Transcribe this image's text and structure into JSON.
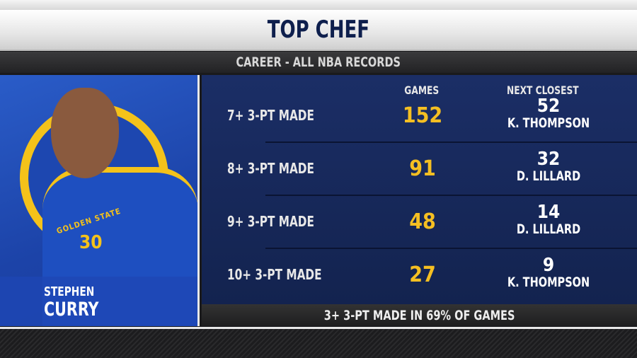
{
  "header": {
    "title": "TOP CHEF",
    "subtitle": "CAREER - ALL NBA RECORDS"
  },
  "player": {
    "first_name": "STEPHEN",
    "last_name": "CURRY",
    "jersey_number": "30",
    "jersey_text": "GOLDEN STATE",
    "colors": {
      "blue": "#1d47b0",
      "gold": "#f4c21a"
    }
  },
  "table": {
    "columns": [
      "GAMES",
      "NEXT CLOSEST"
    ],
    "rows": [
      {
        "label": "7+ 3-PT MADE",
        "games": "152",
        "next_value": "52",
        "next_player": "K. THOMPSON"
      },
      {
        "label": "8+ 3-PT MADE",
        "games": "91",
        "next_value": "32",
        "next_player": "D. LILLARD"
      },
      {
        "label": "9+ 3-PT MADE",
        "games": "48",
        "next_value": "14",
        "next_player": "D. LILLARD"
      },
      {
        "label": "10+ 3-PT MADE",
        "games": "27",
        "next_value": "9",
        "next_player": "K. THOMPSON"
      }
    ]
  },
  "footer": "3+ 3-PT MADE IN 69% OF GAMES",
  "colors": {
    "navy": "#13234f",
    "accent": "#f5bf22"
  }
}
